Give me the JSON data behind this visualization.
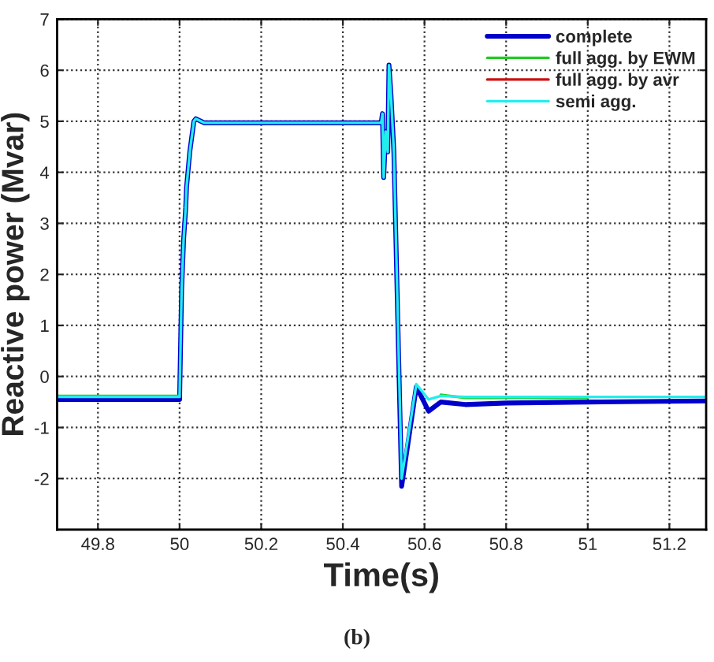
{
  "chart_data": {
    "type": "line",
    "xlabel": "Time(s)",
    "ylabel": "Reactive power (Mvar)",
    "annotations": [
      "(b)"
    ],
    "xlim": [
      49.7,
      51.29
    ],
    "ylim": [
      -3,
      7
    ],
    "xticks": [
      49.8,
      50,
      50.2,
      50.4,
      50.6,
      50.8,
      51,
      51.2
    ],
    "yticks": [
      -2,
      -1,
      0,
      1,
      2,
      3,
      4,
      5,
      6,
      7
    ],
    "grid": true,
    "legend": "top right",
    "line_style": "solid",
    "marker": "none",
    "series": [
      {
        "name": "complete",
        "color": "#0000cc",
        "x": [
          49.7,
          50.0,
          50.005,
          50.01,
          50.015,
          50.017,
          50.025,
          50.035,
          50.04,
          50.06,
          50.494,
          50.497,
          50.5,
          50.505,
          50.51,
          50.513,
          50.518,
          50.525,
          50.544,
          50.58,
          50.61,
          50.64,
          50.7,
          50.8,
          51.0,
          51.29
        ],
        "values": [
          -0.45,
          -0.45,
          1.7,
          2.7,
          3.3,
          3.7,
          4.4,
          5.0,
          5.05,
          4.97,
          4.97,
          5.15,
          3.9,
          4.8,
          4.4,
          6.1,
          5.5,
          4.4,
          -2.15,
          -0.2,
          -0.68,
          -0.5,
          -0.55,
          -0.52,
          -0.5,
          -0.48
        ]
      },
      {
        "name": "full agg. by EWM",
        "color": "#22cc22",
        "x": [
          49.7,
          50.0,
          50.61,
          50.64,
          50.7,
          50.8,
          51.0
        ],
        "values": [
          -0.38,
          -0.38,
          null,
          -0.36,
          -0.42,
          -0.42,
          -0.42
        ]
      },
      {
        "name": "full agg. by avr",
        "color": "#cc1111"
      },
      {
        "name": "semi agg.",
        "color": "#22eeee",
        "x": [
          49.7,
          50.0,
          50.005,
          50.01,
          50.015,
          50.017,
          50.025,
          50.035,
          50.04,
          50.06,
          50.494,
          50.497,
          50.5,
          50.505,
          50.51,
          50.513,
          50.518,
          50.525,
          50.544,
          50.58,
          50.61,
          50.64,
          50.7,
          50.8,
          51.0,
          51.29
        ],
        "values": [
          -0.4,
          -0.4,
          1.7,
          2.7,
          3.3,
          3.7,
          4.4,
          5.0,
          5.05,
          4.97,
          4.97,
          5.15,
          3.9,
          4.8,
          4.4,
          6.1,
          5.5,
          4.4,
          -2.0,
          -0.15,
          -0.45,
          -0.38,
          -0.4,
          -0.4,
          -0.4,
          -0.4
        ]
      }
    ]
  }
}
